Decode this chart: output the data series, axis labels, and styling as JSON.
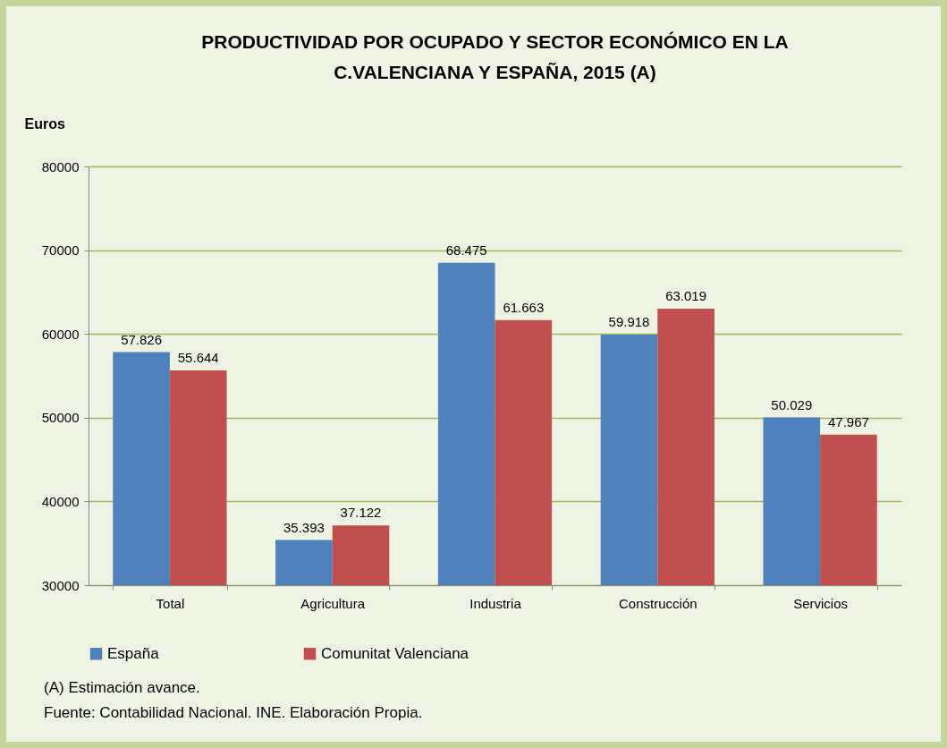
{
  "chart_data": {
    "type": "bar",
    "title": "PRODUCTIVIDAD POR OCUPADO Y SECTOR ECONÓMICO EN LA\nC.VALENCIANA  Y  ESPAÑA, 2015 (A)",
    "ylabel": "Euros",
    "categories": [
      "Total",
      "Agricultura",
      "Industria",
      "Construcción",
      "Servicios"
    ],
    "series": [
      {
        "name": "España",
        "color": "#4f81bd",
        "values": [
          57826,
          35393,
          68475,
          59918,
          50029
        ],
        "value_labels": [
          "57.826",
          "35.393",
          "68.475",
          "59.918",
          "50.029"
        ]
      },
      {
        "name": "Comunitat Valenciana",
        "color": "#c0504d",
        "values": [
          55644,
          37122,
          61663,
          63019,
          47967
        ],
        "value_labels": [
          "55.644",
          "37.122",
          "61.663",
          "63.019",
          "47.967"
        ]
      }
    ],
    "ylim": [
      30000,
      80000
    ],
    "yticks": [
      30000,
      40000,
      50000,
      60000,
      70000,
      80000
    ],
    "grid": "y",
    "legend": "bottom",
    "annotations": [
      "(A) Estimación avance.",
      "Fuente: Contabilidad Nacional. INE. Elaboración Propia."
    ]
  }
}
